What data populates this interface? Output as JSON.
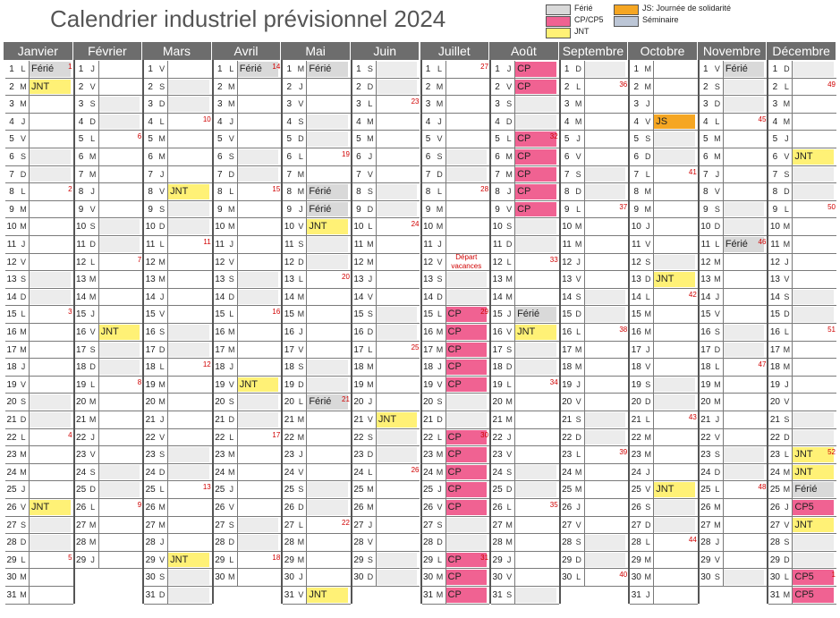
{
  "title": "Calendrier industriel prévisionnel 2024",
  "legend": [
    {
      "label": "Férié",
      "color": "#d9d9d9"
    },
    {
      "label": "CP/CP5",
      "color": "#f06292"
    },
    {
      "label": "JNT",
      "color": "#fff176"
    },
    {
      "label": "JS: Journée de solidarité",
      "color": "#f5a623"
    },
    {
      "label": "Séminaire",
      "color": "#bcc6d6"
    }
  ],
  "months": [
    "Janvier",
    "Février",
    "Mars",
    "Avril",
    "Mai",
    "Juin",
    "Juillet",
    "Août",
    "Septembre",
    "Octobre",
    "Novembre",
    "Décembre"
  ],
  "first_weekday_index": [
    0,
    3,
    4,
    0,
    2,
    5,
    0,
    3,
    6,
    1,
    4,
    6
  ],
  "days_in_month": [
    31,
    29,
    31,
    30,
    31,
    30,
    31,
    31,
    30,
    31,
    30,
    31
  ],
  "weekday_letters": [
    "L",
    "M",
    "M",
    "J",
    "V",
    "S",
    "D"
  ],
  "events": {
    "0": {
      "1": "Férié",
      "2": "JNT",
      "26": "JNT"
    },
    "1": {
      "16": "JNT"
    },
    "2": {
      "8": "JNT",
      "29": "JNT"
    },
    "3": {
      "1": "Férié",
      "19": "JNT"
    },
    "4": {
      "1": "Férié",
      "8": "Férié",
      "9": "Férié",
      "10": "JNT",
      "20": "Férié",
      "31": "JNT"
    },
    "5": {
      "21": "JNT"
    },
    "6": {
      "15": "CP",
      "16": "CP",
      "17": "CP",
      "18": "CP",
      "19": "CP",
      "22": "CP",
      "23": "CP",
      "24": "CP",
      "25": "CP",
      "26": "CP",
      "29": "CP",
      "30": "CP",
      "31": "CP"
    },
    "7": {
      "1": "CP",
      "2": "CP",
      "5": "CP",
      "6": "CP",
      "7": "CP",
      "8": "CP",
      "9": "CP",
      "15": "Férié",
      "16": "JNT"
    },
    "8": {},
    "9": {
      "4": "JS",
      "13": "JNT",
      "25": "JNT"
    },
    "10": {
      "1": "Férié",
      "11": "Férié"
    },
    "11": {
      "6": "JNT",
      "23": "JNT",
      "24": "JNT",
      "25": "Férié",
      "26": "CP5",
      "27": "JNT",
      "30": "CP5",
      "31": "CP5"
    }
  },
  "event_types": {
    "Férié": "F",
    "CP": "CP",
    "CP5": "CP",
    "JNT": "JNT",
    "JS": "JS"
  },
  "week_numbers": {
    "0": {
      "1": "1",
      "8": "2",
      "15": "3",
      "22": "4",
      "29": "5"
    },
    "1": {
      "5": "6",
      "12": "7",
      "19": "8",
      "26": "9"
    },
    "2": {
      "4": "10",
      "11": "11",
      "18": "12",
      "25": "13"
    },
    "3": {
      "1": "14",
      "8": "15",
      "15": "16",
      "22": "17",
      "29": "18"
    },
    "4": {
      "6": "19",
      "13": "20",
      "20": "21",
      "27": "22"
    },
    "5": {
      "3": "23",
      "10": "24",
      "17": "25",
      "24": "26"
    },
    "6": {
      "1": "27",
      "8": "28",
      "15": "29",
      "22": "30",
      "29": "31"
    },
    "7": {
      "5": "32",
      "12": "33",
      "19": "34",
      "26": "35"
    },
    "8": {
      "2": "36",
      "9": "37",
      "16": "38",
      "23": "39",
      "30": "40"
    },
    "9": {
      "7": "41",
      "14": "42",
      "21": "43",
      "28": "44"
    },
    "10": {
      "4": "45",
      "11": "46",
      "18": "47",
      "25": "48"
    },
    "11": {
      "2": "49",
      "9": "50",
      "16": "51",
      "23": "52",
      "30": "1"
    }
  },
  "notes": [
    {
      "month": 6,
      "day": 12,
      "text": "Départ vacances"
    }
  ]
}
